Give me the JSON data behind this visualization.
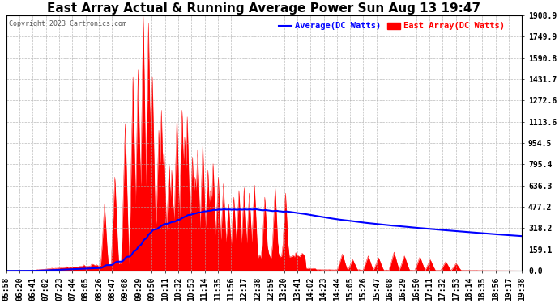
{
  "title": "East Array Actual & Running Average Power Sun Aug 13 19:47",
  "copyright": "Copyright 2023 Cartronics.com",
  "ylabel_right_values": [
    1908.9,
    1749.9,
    1590.8,
    1431.7,
    1272.6,
    1113.6,
    954.5,
    795.4,
    636.3,
    477.2,
    318.2,
    159.1,
    0.0
  ],
  "ymax": 1908.9,
  "ymin": 0.0,
  "legend_avg_label": "Average(DC Watts)",
  "legend_east_label": "East Array(DC Watts)",
  "avg_color": "blue",
  "east_color": "red",
  "background_color": "#ffffff",
  "grid_color": "#aaaaaa",
  "title_fontsize": 11,
  "tick_fontsize": 7,
  "x_tick_labels": [
    "05:58",
    "06:20",
    "06:41",
    "07:02",
    "07:23",
    "07:44",
    "08:05",
    "08:26",
    "08:47",
    "09:08",
    "09:29",
    "09:50",
    "10:11",
    "10:32",
    "10:53",
    "11:14",
    "11:35",
    "11:56",
    "12:17",
    "12:38",
    "12:59",
    "13:20",
    "13:41",
    "14:02",
    "14:23",
    "14:44",
    "15:05",
    "15:26",
    "15:47",
    "16:08",
    "16:29",
    "16:50",
    "17:11",
    "17:32",
    "17:53",
    "18:14",
    "18:35",
    "18:56",
    "19:17",
    "19:38"
  ],
  "num_points": 400
}
